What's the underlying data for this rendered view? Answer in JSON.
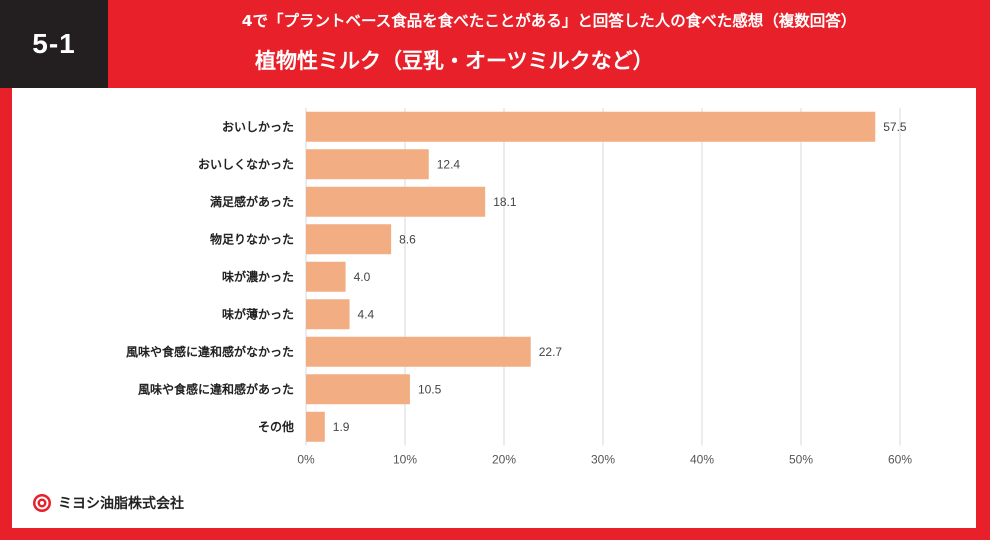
{
  "badge": "5-1",
  "subtitle": "4で「プラントベース食品を食べたことがある」と回答した人の食べた感想（複数回答）",
  "title": "植物性ミルク（豆乳・オーツミルクなど）",
  "company": "ミヨシ油脂株式会社",
  "colors": {
    "bar": "#f2ae82",
    "header": "#e8202a",
    "badge": "#231f20",
    "grid": "#d9d9d9"
  },
  "chart_data": {
    "type": "bar",
    "orientation": "horizontal",
    "categories": [
      "おいしかった",
      "おいしくなかった",
      "満足感があった",
      "物足りなかった",
      "味が濃かった",
      "味が薄かった",
      "風味や食感に違和感がなかった",
      "風味や食感に違和感があった",
      "その他"
    ],
    "values": [
      57.5,
      12.4,
      18.1,
      8.6,
      4.0,
      4.4,
      22.7,
      10.5,
      1.9
    ],
    "xlim": [
      0,
      60
    ],
    "ticks": [
      "0%",
      "10%",
      "20%",
      "30%",
      "40%",
      "50%",
      "60%"
    ],
    "tick_values": [
      0,
      10,
      20,
      30,
      40,
      50,
      60
    ],
    "grid": true
  }
}
